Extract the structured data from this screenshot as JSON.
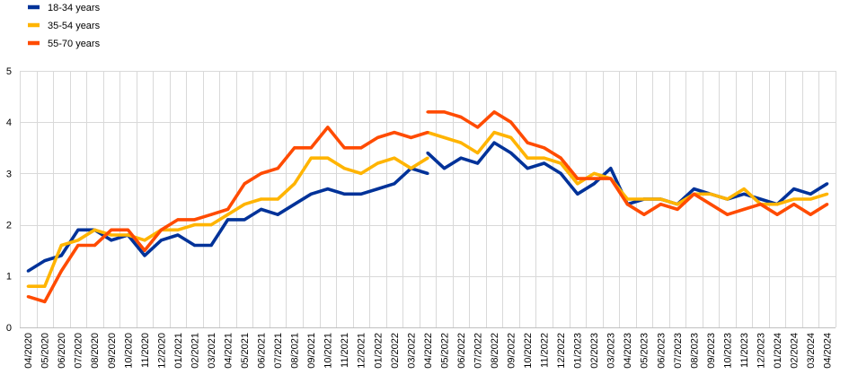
{
  "chart_data": {
    "type": "line",
    "categories": [
      "04/2020",
      "05/2020",
      "06/2020",
      "07/2020",
      "08/2020",
      "09/2020",
      "10/2020",
      "11/2020",
      "12/2020",
      "01/2021",
      "02/2021",
      "03/2021",
      "04/2021",
      "05/2021",
      "06/2021",
      "07/2021",
      "08/2021",
      "09/2021",
      "10/2021",
      "11/2021",
      "12/2021",
      "01/2022",
      "02/2022",
      "03/2022",
      "04/2022",
      "05/2022",
      "06/2022",
      "07/2022",
      "08/2022",
      "09/2022",
      "10/2022",
      "11/2022",
      "12/2022",
      "01/2023",
      "02/2023",
      "03/2023",
      "04/2023",
      "05/2023",
      "06/2023",
      "07/2023",
      "08/2023",
      "09/2023",
      "10/2023",
      "11/2023",
      "12/2023",
      "01/2024",
      "02/2024",
      "03/2024",
      "04/2024"
    ],
    "ylim": [
      0,
      5
    ],
    "yticks": [
      0,
      1,
      2,
      3,
      4,
      5
    ],
    "grid": true,
    "legend": "top-left",
    "series": [
      {
        "name": "18-34 years",
        "color": "#003299",
        "segments": [
          [
            1.1,
            1.3,
            1.4,
            1.9,
            1.9,
            1.7,
            1.8,
            1.4,
            1.7,
            1.8,
            1.6,
            1.6,
            2.1,
            2.1,
            2.3,
            2.2,
            2.4,
            2.6,
            2.7,
            2.6,
            2.6,
            2.7,
            2.8,
            3.1,
            3.0,
            null,
            null,
            null,
            null,
            null,
            null,
            null,
            null,
            null,
            null,
            null,
            null,
            null,
            null,
            null,
            null,
            null,
            null,
            null,
            null,
            null,
            null,
            null,
            null
          ],
          [
            null,
            null,
            null,
            null,
            null,
            null,
            null,
            null,
            null,
            null,
            null,
            null,
            null,
            null,
            null,
            null,
            null,
            null,
            null,
            null,
            null,
            null,
            null,
            null,
            3.4,
            3.1,
            3.3,
            3.2,
            3.6,
            3.4,
            3.1,
            3.2,
            3.0,
            2.6,
            2.8,
            3.1,
            2.4,
            2.5,
            2.5,
            2.4,
            2.7,
            2.6,
            2.5,
            2.6,
            2.5,
            2.4,
            2.7,
            2.6,
            2.8
          ]
        ]
      },
      {
        "name": "35-54 years",
        "color": "#FFB400",
        "segments": [
          [
            0.8,
            0.8,
            1.6,
            1.7,
            1.9,
            1.8,
            1.8,
            1.7,
            1.9,
            1.9,
            2.0,
            2.0,
            2.2,
            2.4,
            2.5,
            2.5,
            2.8,
            3.3,
            3.3,
            3.1,
            3.0,
            3.2,
            3.3,
            3.1,
            3.3,
            null,
            null,
            null,
            null,
            null,
            null,
            null,
            null,
            null,
            null,
            null,
            null,
            null,
            null,
            null,
            null,
            null,
            null,
            null,
            null,
            null,
            null,
            null,
            null
          ],
          [
            null,
            null,
            null,
            null,
            null,
            null,
            null,
            null,
            null,
            null,
            null,
            null,
            null,
            null,
            null,
            null,
            null,
            null,
            null,
            null,
            null,
            null,
            null,
            null,
            3.8,
            3.7,
            3.6,
            3.4,
            3.8,
            3.7,
            3.3,
            3.3,
            3.2,
            2.8,
            3.0,
            2.9,
            2.5,
            2.5,
            2.5,
            2.4,
            2.6,
            2.6,
            2.5,
            2.7,
            2.4,
            2.4,
            2.5,
            2.5,
            2.6
          ]
        ]
      },
      {
        "name": "55-70 years",
        "color": "#FF4B00",
        "segments": [
          [
            0.6,
            0.5,
            1.1,
            1.6,
            1.6,
            1.9,
            1.9,
            1.5,
            1.9,
            2.1,
            2.1,
            2.2,
            2.3,
            2.8,
            3.0,
            3.1,
            3.5,
            3.5,
            3.9,
            3.5,
            3.5,
            3.7,
            3.8,
            3.7,
            3.8,
            null,
            null,
            null,
            null,
            null,
            null,
            null,
            null,
            null,
            null,
            null,
            null,
            null,
            null,
            null,
            null,
            null,
            null,
            null,
            null,
            null,
            null,
            null,
            null
          ],
          [
            null,
            null,
            null,
            null,
            null,
            null,
            null,
            null,
            null,
            null,
            null,
            null,
            null,
            null,
            null,
            null,
            null,
            null,
            null,
            null,
            null,
            null,
            null,
            null,
            4.2,
            4.2,
            4.1,
            3.9,
            4.2,
            4.0,
            3.6,
            3.5,
            3.3,
            2.9,
            2.9,
            2.9,
            2.4,
            2.2,
            2.4,
            2.3,
            2.6,
            2.4,
            2.2,
            2.3,
            2.4,
            2.2,
            2.4,
            2.2,
            2.4
          ]
        ]
      }
    ]
  }
}
